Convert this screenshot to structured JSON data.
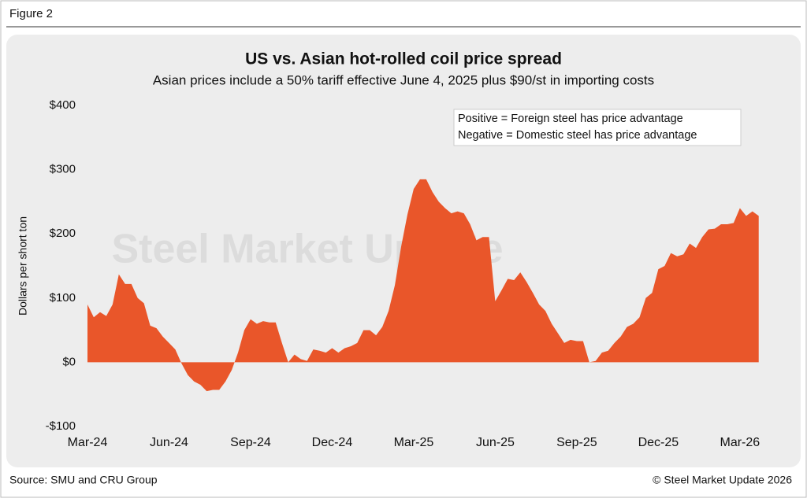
{
  "figure_label": "Figure 2",
  "source": "Source: SMU and CRU Group",
  "copyright": "© Steel Market Update 2026",
  "watermark": "Steel Market Update",
  "chart_data": {
    "type": "area",
    "title": "US vs. Asian hot-rolled coil price spread",
    "subtitle": "Asian prices include a 50% tariff effective June 4, 2025 plus $90/st in importing costs",
    "y_label": "Dollars per short ton",
    "annotations": [
      "Positive = Foreign steel has price advantage",
      "Negative = Domestic steel has price advantage"
    ],
    "color": "#e9562a",
    "ylim": [
      -100,
      400
    ],
    "yticks": [
      {
        "value": -100,
        "label": "-$100"
      },
      {
        "value": 0,
        "label": "$0"
      },
      {
        "value": 100,
        "label": "$100"
      },
      {
        "value": 200,
        "label": "$200"
      },
      {
        "value": 300,
        "label": "$300"
      },
      {
        "value": 400,
        "label": "$400"
      }
    ],
    "grid": false,
    "categories": [
      "Mar-24",
      null,
      null,
      null,
      null,
      null,
      null,
      null,
      null,
      null,
      null,
      null,
      null,
      "Jun-24",
      null,
      null,
      null,
      null,
      null,
      null,
      null,
      null,
      null,
      null,
      null,
      null,
      "Sep-24",
      null,
      null,
      null,
      null,
      null,
      null,
      null,
      null,
      null,
      null,
      null,
      null,
      "Dec-24",
      null,
      null,
      null,
      null,
      null,
      null,
      null,
      null,
      null,
      null,
      null,
      null,
      "Mar-25",
      null,
      null,
      null,
      null,
      null,
      null,
      null,
      null,
      null,
      null,
      null,
      null,
      "Jun-25",
      null,
      null,
      null,
      null,
      null,
      null,
      null,
      null,
      null,
      null,
      null,
      null,
      "Sep-25",
      null,
      null,
      null,
      null,
      null,
      null,
      null,
      null,
      null,
      null,
      null,
      null,
      "Dec-25",
      null,
      null,
      null,
      null,
      null,
      null,
      null,
      null,
      null,
      null,
      null,
      null,
      "Mar-26",
      null,
      null,
      null
    ],
    "values": [
      90,
      70,
      78,
      72,
      90,
      137,
      122,
      122,
      100,
      92,
      57,
      53,
      40,
      30,
      20,
      -2,
      -20,
      -30,
      -35,
      -45,
      -43,
      -43,
      -30,
      -12,
      15,
      50,
      67,
      60,
      64,
      62,
      62,
      30,
      0,
      12,
      5,
      2,
      20,
      18,
      15,
      22,
      15,
      22,
      25,
      30,
      50,
      50,
      42,
      55,
      80,
      120,
      180,
      230,
      270,
      285,
      285,
      265,
      250,
      240,
      232,
      235,
      232,
      215,
      190,
      195,
      195,
      95,
      112,
      130,
      128,
      140,
      125,
      108,
      90,
      80,
      60,
      45,
      30,
      35,
      33,
      33,
      0,
      2,
      15,
      18,
      30,
      40,
      55,
      60,
      70,
      100,
      108,
      145,
      150,
      170,
      165,
      168,
      185,
      178,
      195,
      207,
      208,
      215,
      215,
      217,
      240,
      228,
      235,
      228
    ]
  }
}
